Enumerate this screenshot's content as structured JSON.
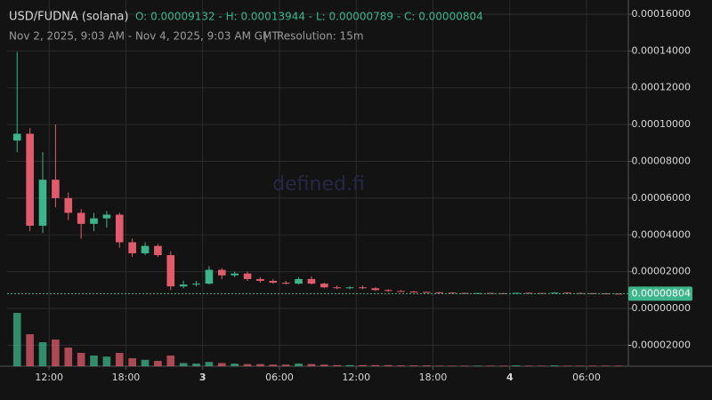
{
  "chart_data": {
    "type": "candlestick",
    "title": "USD/FUDNA (solana)",
    "ohlc_text": "O: 0.00009132 - H: 0.00013944 - L: 0.00000789 - C: 0.00000804",
    "subtitle": "Nov 2, 2025, 9:03 AM - Nov 4, 2025, 9:03 AM GMT",
    "separator": "|",
    "resolution": "Resolution: 15m",
    "watermark": "defined.fi",
    "up_color": "#3db58a",
    "down_color": "#e05c6c",
    "grid": true,
    "xlim": [
      "2025-11-02T08:43",
      "2025-11-04T09:16"
    ],
    "xticks": [
      {
        "value": "2025-11-02T12:00",
        "label": "12:00"
      },
      {
        "value": "2025-11-02T18:00",
        "label": "18:00"
      },
      {
        "value": "2025-11-03T00:00",
        "label": "3"
      },
      {
        "value": "2025-11-03T06:00",
        "label": "06:00"
      },
      {
        "value": "2025-11-03T12:00",
        "label": "12:00"
      },
      {
        "value": "2025-11-03T18:00",
        "label": "18:00"
      },
      {
        "value": "2025-11-04T00:00",
        "label": "4"
      },
      {
        "value": "2025-11-04T06:00",
        "label": "06:00"
      }
    ],
    "ylim": [
      -3.14e-05,
      0.0001653
    ],
    "yticks": [
      {
        "value": 0.00016,
        "label": "0.00016000"
      },
      {
        "value": 0.00014,
        "label": "0.00014000"
      },
      {
        "value": 0.00012,
        "label": "0.00012000"
      },
      {
        "value": 0.0001,
        "label": "0.00010000"
      },
      {
        "value": 8e-05,
        "label": "0.00008000"
      },
      {
        "value": 6e-05,
        "label": "0.00006000"
      },
      {
        "value": 4e-05,
        "label": "0.00004000"
      },
      {
        "value": 2e-05,
        "label": "0.00002000"
      },
      {
        "value": 0,
        "label": "0.00000000"
      },
      {
        "value": -2e-05,
        "label": "-0.00002000"
      }
    ],
    "last_price": {
      "value": 8.04e-06,
      "label": "0.00000804"
    },
    "x": [
      "2025-11-02T09:00",
      "2025-11-02T10:00",
      "2025-11-02T11:00",
      "2025-11-02T12:00",
      "2025-11-02T13:00",
      "2025-11-02T14:00",
      "2025-11-02T15:00",
      "2025-11-02T16:00",
      "2025-11-02T17:00",
      "2025-11-02T18:00",
      "2025-11-02T19:00",
      "2025-11-02T20:00",
      "2025-11-02T21:00",
      "2025-11-02T22:00",
      "2025-11-02T23:00",
      "2025-11-03T00:00",
      "2025-11-03T01:00",
      "2025-11-03T02:00",
      "2025-11-03T03:00",
      "2025-11-03T04:00",
      "2025-11-03T05:00",
      "2025-11-03T06:00",
      "2025-11-03T07:00",
      "2025-11-03T08:00",
      "2025-11-03T09:00",
      "2025-11-03T10:00",
      "2025-11-03T11:00",
      "2025-11-03T12:00",
      "2025-11-03T13:00",
      "2025-11-03T14:00",
      "2025-11-03T15:00",
      "2025-11-03T16:00",
      "2025-11-03T17:00",
      "2025-11-03T18:00",
      "2025-11-03T19:00",
      "2025-11-03T20:00",
      "2025-11-03T21:00",
      "2025-11-03T22:00",
      "2025-11-03T23:00",
      "2025-11-04T00:00",
      "2025-11-04T01:00",
      "2025-11-04T02:00",
      "2025-11-04T03:00",
      "2025-11-04T04:00",
      "2025-11-04T05:00",
      "2025-11-04T06:00",
      "2025-11-04T07:00",
      "2025-11-04T08:00"
    ],
    "open": [
      9.13e-05,
      9.5e-05,
      4.5e-05,
      7e-05,
      6e-05,
      5.2e-05,
      4.6e-05,
      4.9e-05,
      5.1e-05,
      3.6e-05,
      3e-05,
      3.4e-05,
      2.9e-05,
      1.2e-05,
      1.3e-05,
      1.35e-05,
      2.1e-05,
      1.8e-05,
      1.9e-05,
      1.6e-05,
      1.5e-05,
      1.4e-05,
      1.35e-05,
      1.6e-05,
      1.35e-05,
      1.15e-05,
      1.1e-05,
      1.15e-05,
      1.1e-05,
      1e-05,
      9.5e-06,
      9.2e-06,
      9e-06,
      8.8e-06,
      8.6e-06,
      8.4e-06,
      8.3e-06,
      8.4e-06,
      8.3e-06,
      8.2e-06,
      8.5e-06,
      8.4e-06,
      8.3e-06,
      8.6e-06,
      8.4e-06,
      8.3e-06,
      8.2e-06,
      8.1e-06
    ],
    "high": [
      0.00013944,
      9.8e-05,
      8.5e-05,
      0.0001,
      6.3e-05,
      5.4e-05,
      5.2e-05,
      5.3e-05,
      5.2e-05,
      3.8e-05,
      3.6e-05,
      3.5e-05,
      3.1e-05,
      1.5e-05,
      1.5e-05,
      2.3e-05,
      2.2e-05,
      2e-05,
      2e-05,
      1.7e-05,
      1.6e-05,
      1.5e-05,
      1.7e-05,
      1.75e-05,
      1.4e-05,
      1.25e-05,
      1.2e-05,
      1.25e-05,
      1.15e-05,
      1.05e-05,
      1e-05,
      9.5e-06,
      9.2e-06,
      9e-06,
      8.8e-06,
      8.6e-06,
      8.5e-06,
      8.6e-06,
      8.4e-06,
      8.6e-06,
      8.7e-06,
      8.5e-06,
      8.9e-06,
      8.8e-06,
      8.6e-06,
      8.4e-06,
      8.3e-06,
      8.2e-06
    ],
    "low": [
      8.5e-05,
      4.2e-05,
      4.1e-05,
      5.5e-05,
      4.8e-05,
      3.8e-05,
      4.2e-05,
      4.4e-05,
      3.3e-05,
      2.8e-05,
      2.9e-05,
      2.8e-05,
      1e-05,
      1.1e-05,
      1.2e-05,
      1.3e-05,
      1.6e-05,
      1.7e-05,
      1.5e-05,
      1.4e-05,
      1.35e-05,
      1.3e-05,
      1.3e-05,
      1.3e-05,
      1.1e-05,
      1.05e-05,
      1.05e-05,
      1.05e-05,
      9.5e-06,
      9e-06,
      9e-06,
      8.8e-06,
      8.6e-06,
      8.4e-06,
      8.3e-06,
      8.2e-06,
      8.2e-06,
      8.2e-06,
      8.1e-06,
      8.1e-06,
      8.3e-06,
      8.2e-06,
      8.2e-06,
      8.3e-06,
      8.2e-06,
      8.1e-06,
      8e-06,
      7.89e-06
    ],
    "close": [
      9.5e-05,
      4.5e-05,
      7e-05,
      6e-05,
      5.2e-05,
      4.6e-05,
      4.9e-05,
      5.1e-05,
      3.6e-05,
      3e-05,
      3.4e-05,
      2.9e-05,
      1.2e-05,
      1.3e-05,
      1.35e-05,
      2.1e-05,
      1.8e-05,
      1.9e-05,
      1.6e-05,
      1.5e-05,
      1.4e-05,
      1.35e-05,
      1.6e-05,
      1.35e-05,
      1.15e-05,
      1.1e-05,
      1.15e-05,
      1.1e-05,
      1e-05,
      9.5e-06,
      9.2e-06,
      9e-06,
      8.8e-06,
      8.6e-06,
      8.4e-06,
      8.3e-06,
      8.4e-06,
      8.3e-06,
      8.2e-06,
      8.5e-06,
      8.4e-06,
      8.3e-06,
      8.6e-06,
      8.4e-06,
      8.3e-06,
      8.2e-06,
      8.1e-06,
      8.04e-06
    ],
    "volume": [
      100,
      60,
      45,
      50,
      35,
      25,
      20,
      18,
      25,
      15,
      12,
      10,
      20,
      6,
      5,
      8,
      6,
      5,
      4,
      4,
      3,
      3,
      5,
      4,
      3,
      2,
      2,
      2,
      2,
      2,
      1.5,
      1.5,
      1.5,
      1,
      1,
      1,
      1,
      1,
      1,
      1.5,
      1,
      1,
      1.5,
      1,
      1,
      1,
      1,
      1
    ]
  }
}
